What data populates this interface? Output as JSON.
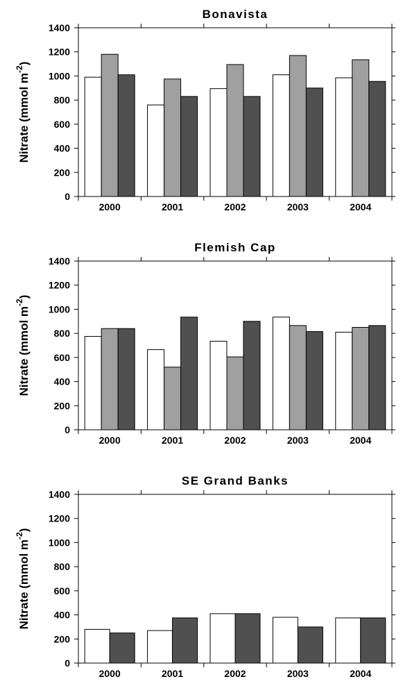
{
  "chart_data": [
    {
      "type": "bar",
      "title": "Bonavista",
      "ylabel": "Nitrate (mmol m",
      "ylabel_sup": "-2",
      "ylabel_end": ")",
      "categories": [
        "2000",
        "2001",
        "2002",
        "2003",
        "2004"
      ],
      "series": [
        {
          "color": "#ffffff",
          "values": [
            990,
            760,
            895,
            1010,
            985
          ]
        },
        {
          "color": "#a0a0a0",
          "values": [
            1180,
            975,
            1095,
            1170,
            1135
          ]
        },
        {
          "color": "#505050",
          "values": [
            1010,
            830,
            830,
            900,
            955
          ]
        }
      ],
      "ylim": [
        0,
        1400
      ],
      "yticks": [
        0,
        200,
        400,
        600,
        800,
        1000,
        1200,
        1400
      ]
    },
    {
      "type": "bar",
      "title": "Flemish Cap",
      "ylabel": "Nitrate (mmol m",
      "ylabel_sup": "-2",
      "ylabel_end": ")",
      "categories": [
        "2000",
        "2001",
        "2002",
        "2003",
        "2004"
      ],
      "series": [
        {
          "color": "#ffffff",
          "values": [
            775,
            665,
            735,
            935,
            810
          ]
        },
        {
          "color": "#a0a0a0",
          "values": [
            840,
            520,
            605,
            865,
            850
          ]
        },
        {
          "color": "#505050",
          "values": [
            840,
            935,
            900,
            815,
            865
          ]
        }
      ],
      "ylim": [
        0,
        1400
      ],
      "yticks": [
        0,
        200,
        400,
        600,
        800,
        1000,
        1200,
        1400
      ]
    },
    {
      "type": "bar",
      "title": "SE Grand Banks",
      "ylabel": "Nitrate (mmol m",
      "ylabel_sup": "-2",
      "ylabel_end": ")",
      "categories": [
        "2000",
        "2001",
        "2002",
        "2003",
        "2004"
      ],
      "series": [
        {
          "color": "#ffffff",
          "values": [
            280,
            270,
            410,
            380,
            375
          ]
        },
        {
          "color": "#505050",
          "values": [
            250,
            375,
            410,
            300,
            375
          ]
        }
      ],
      "ylim": [
        0,
        1400
      ],
      "yticks": [
        0,
        200,
        400,
        600,
        800,
        1000,
        1200,
        1400
      ]
    }
  ]
}
